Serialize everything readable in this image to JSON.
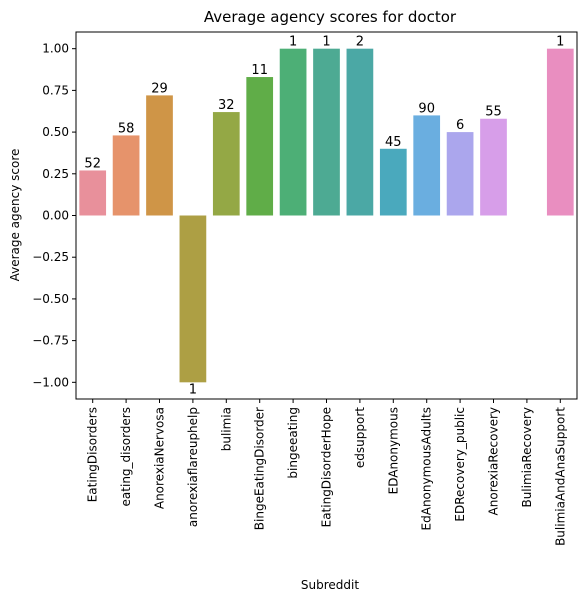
{
  "chart_data": {
    "type": "bar",
    "title": "Average agency scores for doctor",
    "xlabel": "Subreddit",
    "ylabel": "Average agency score",
    "ylim": [
      -1.1,
      1.1
    ],
    "yticks": [
      -1.0,
      -0.75,
      -0.5,
      -0.25,
      0.0,
      0.25,
      0.5,
      0.75,
      1.0
    ],
    "ytick_labels": [
      "−1.00",
      "−0.75",
      "−0.50",
      "−0.25",
      "0.00",
      "0.25",
      "0.50",
      "0.75",
      "1.00"
    ],
    "grid": false,
    "categories": [
      "EatingDisorders",
      "eating_disorders",
      "AnorexiaNervosa",
      "anorexiaflareuphelp",
      "bulimia",
      "BingeEatingDisorder",
      "bingeeating",
      "EatingDisorderHope",
      "edsupport",
      "EDAnonymous",
      "EdAnonymousAdults",
      "EDRecovery_public",
      "AnorexiaRecovery",
      "BulimiaRecovery",
      "BulimiaAndAnaSupport"
    ],
    "values": [
      0.27,
      0.48,
      0.72,
      -1.0,
      0.62,
      0.83,
      1.0,
      1.0,
      1.0,
      0.4,
      0.6,
      0.5,
      0.58,
      null,
      1.0
    ],
    "data_labels": [
      "52",
      "58",
      "29",
      "1",
      "32",
      "11",
      "1",
      "1",
      "2",
      "45",
      "90",
      "6",
      "55",
      "",
      "1"
    ],
    "colors": [
      "#e8909b",
      "#e6936b",
      "#cf9547",
      "#ad9f44",
      "#94a845",
      "#60ad48",
      "#4daf76",
      "#4daa93",
      "#4ba8a5",
      "#4aa9bd",
      "#6aaee0",
      "#aba6ed",
      "#d79ee9",
      "#e99bdd",
      "#e98ec0"
    ]
  }
}
